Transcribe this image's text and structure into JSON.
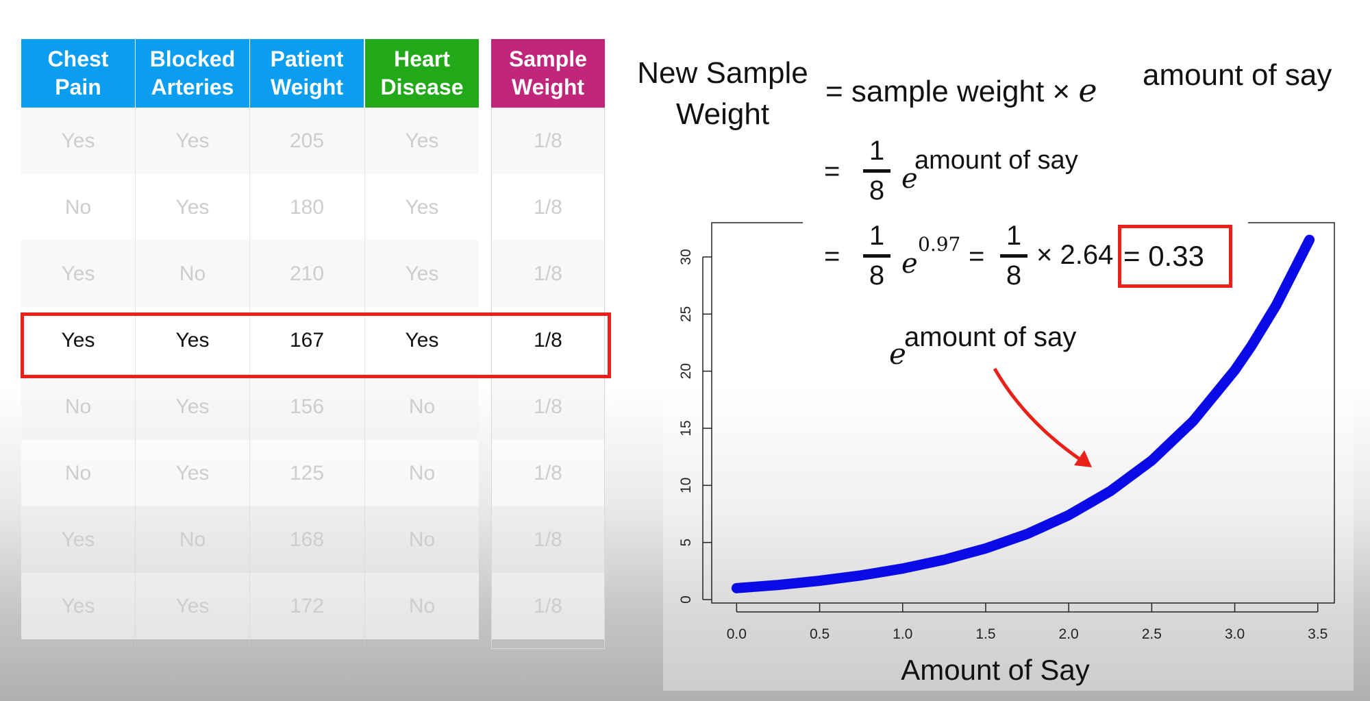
{
  "table": {
    "headers": [
      {
        "label": "Chest\nPain",
        "color": "#0a9df0"
      },
      {
        "label": "Blocked\nArteries",
        "color": "#0a9df0"
      },
      {
        "label": "Patient\nWeight",
        "color": "#0a9df0"
      },
      {
        "label": "Heart\nDisease",
        "color": "#22a919"
      }
    ],
    "sample_header": {
      "label": "Sample\nWeight",
      "color": "#c0267a"
    },
    "rows": [
      {
        "cells": [
          "Yes",
          "Yes",
          "205",
          "Yes"
        ],
        "sample_weight": "1/8",
        "highlighted": false
      },
      {
        "cells": [
          "No",
          "Yes",
          "180",
          "Yes"
        ],
        "sample_weight": "1/8",
        "highlighted": false
      },
      {
        "cells": [
          "Yes",
          "No",
          "210",
          "Yes"
        ],
        "sample_weight": "1/8",
        "highlighted": false
      },
      {
        "cells": [
          "Yes",
          "Yes",
          "167",
          "Yes"
        ],
        "sample_weight": "1/8",
        "highlighted": true
      },
      {
        "cells": [
          "No",
          "Yes",
          "156",
          "No"
        ],
        "sample_weight": "1/8",
        "highlighted": false
      },
      {
        "cells": [
          "No",
          "Yes",
          "125",
          "No"
        ],
        "sample_weight": "1/8",
        "highlighted": false
      },
      {
        "cells": [
          "Yes",
          "No",
          "168",
          "No"
        ],
        "sample_weight": "1/8",
        "highlighted": false
      },
      {
        "cells": [
          "Yes",
          "Yes",
          "172",
          "No"
        ],
        "sample_weight": "1/8",
        "highlighted": false
      }
    ],
    "highlight_color": "#e8221a"
  },
  "formula": {
    "lhs_line1": "New Sample",
    "lhs_line2": "Weight",
    "line1_prefix": "= sample weight ×",
    "e": "e",
    "exponent": "amount of say",
    "eq": "=",
    "frac_num": "1",
    "frac_den": "8",
    "line3_exponent": "0.97",
    "times_value": "× 2.64",
    "result": "= 0.33"
  },
  "annotation": {
    "e": "e",
    "exponent": "amount of say",
    "arrow_color": "#e8221a"
  },
  "chart_data": {
    "type": "line",
    "xlabel": "Amount of Say",
    "ylabel": "",
    "xlim": [
      -0.15,
      3.6
    ],
    "ylim": [
      -0.3,
      33
    ],
    "x_ticks": [
      0.0,
      0.5,
      1.0,
      1.5,
      2.0,
      2.5,
      3.0,
      3.5
    ],
    "x_tick_labels": [
      "0.0",
      "0.5",
      "1.0",
      "1.5",
      "2.0",
      "2.5",
      "3.0",
      "3.5"
    ],
    "y_ticks": [
      0,
      5,
      10,
      15,
      20,
      25,
      30
    ],
    "y_tick_labels": [
      "0",
      "5",
      "10",
      "15",
      "20",
      "25",
      "30"
    ],
    "series": [
      {
        "color": "#0a0ae6",
        "x": [
          0.0,
          0.25,
          0.5,
          0.75,
          1.0,
          1.25,
          1.5,
          1.75,
          2.0,
          2.25,
          2.5,
          2.75,
          3.0,
          3.1,
          3.25,
          3.45
        ],
        "y": [
          1.0,
          1.28,
          1.65,
          2.12,
          2.72,
          3.49,
          4.48,
          5.75,
          7.39,
          9.49,
          12.18,
          15.64,
          20.09,
          22.2,
          25.79,
          31.5
        ]
      }
    ],
    "grid": false
  }
}
